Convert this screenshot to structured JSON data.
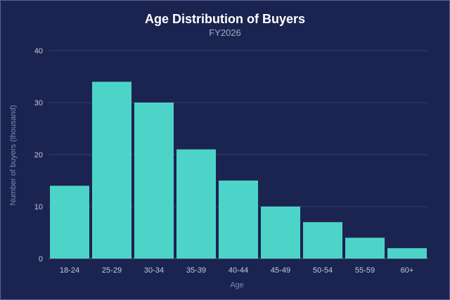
{
  "chart_data": {
    "type": "bar",
    "title": "Age Distribution of Buyers",
    "subtitle": "FY2026",
    "xlabel": "Age",
    "ylabel": "Number of buyers (thousand)",
    "categories": [
      "18-24",
      "25-29",
      "30-34",
      "35-39",
      "40-44",
      "45-49",
      "50-54",
      "55-59",
      "60+"
    ],
    "values": [
      14,
      34,
      30,
      21,
      15,
      10,
      7,
      4,
      2
    ],
    "ylim": [
      0,
      40
    ],
    "yticks": [
      0,
      10,
      20,
      30,
      40
    ],
    "grid": true,
    "legend": "none",
    "bar_color": "#4dd4c8",
    "background_color": "#1b2450"
  }
}
